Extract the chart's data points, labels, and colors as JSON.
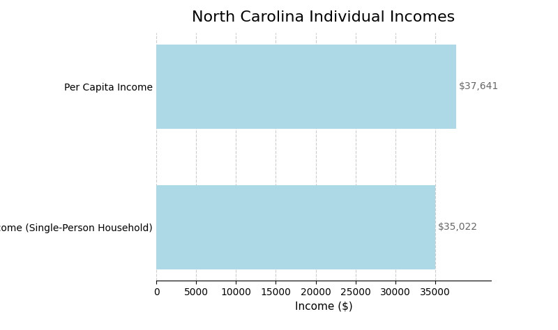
{
  "title": "North Carolina Individual Incomes",
  "categories": [
    "Median Income (Single-Person Household)",
    "Per Capita Income"
  ],
  "values": [
    35022,
    37641
  ],
  "bar_color": "#add8e6",
  "bar_labels": [
    "$35,022",
    "$37,641"
  ],
  "xlabel": "Income ($)",
  "xlim": [
    0,
    42000
  ],
  "xticks": [
    0,
    5000,
    10000,
    15000,
    20000,
    25000,
    30000,
    35000
  ],
  "grid_color": "#cccccc",
  "title_fontsize": 16,
  "label_fontsize": 11,
  "tick_fontsize": 10,
  "bar_height": 0.6,
  "annotation_fontsize": 10,
  "annotation_color": "#666666",
  "background_color": "#ffffff"
}
